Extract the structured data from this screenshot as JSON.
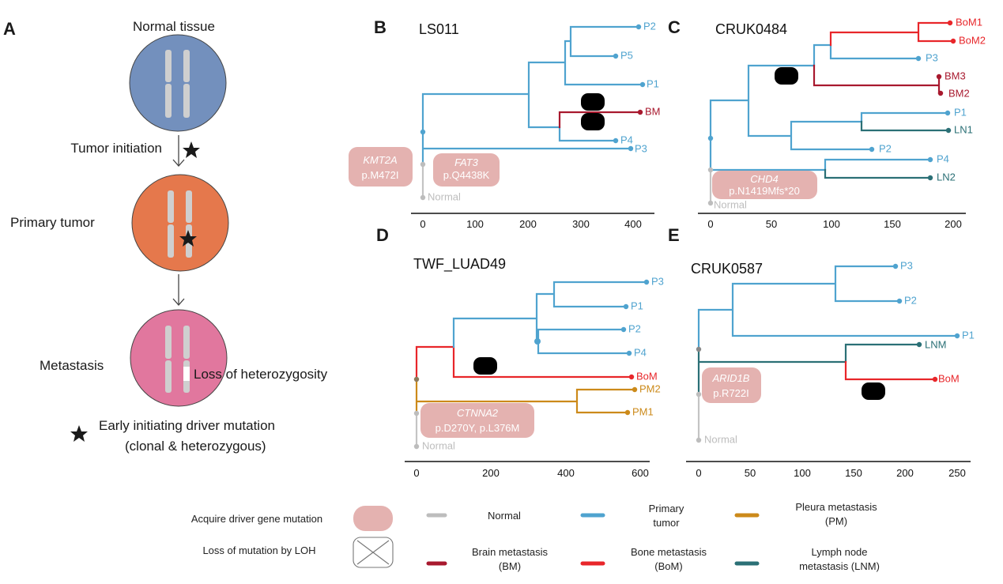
{
  "colors": {
    "primary": "#4FA3CF",
    "brain_metastasis": "#A8192E",
    "bone_metastasis": "#E8262A",
    "pleura_metastasis": "#CC8A1A",
    "lymph_node_metastasis": "#2B7076",
    "normal": "#BDBDBD",
    "driver_mutation_box": "#E4B2B0",
    "normal_tissue_cell": "#7390BD",
    "primary_tumor_cell": "#E5784C",
    "metastasis_cell": "#E1779E"
  },
  "panel_a": {
    "label": "A",
    "normal_tissue": "Normal tissue",
    "tumor_initiation": "Tumor initiation",
    "primary_tumor": "Primary tumor",
    "metastasis": "Metastasis",
    "loh": "Loss of heterozygosity",
    "star_line1": "Early initiating driver mutation",
    "star_line2": "(clonal & heterozygous)"
  },
  "panel_b": {
    "label": "B",
    "title": "LS011",
    "leaves": [
      "P2",
      "P5",
      "P1",
      "BM",
      "P4",
      "P3",
      "Normal"
    ],
    "mutations": [
      {
        "gene": "KMT2A",
        "change": "p.M472I"
      },
      {
        "gene": "FAT3",
        "change": "p.Q4438K"
      }
    ],
    "ticks": [
      "0",
      "100",
      "200",
      "300",
      "400"
    ]
  },
  "panel_c": {
    "label": "C",
    "title": "CRUK0484",
    "leaves": [
      "BoM1",
      "BoM2",
      "P3",
      "BM3",
      "BM2",
      "P1",
      "LN1",
      "P2",
      "P4",
      "LN2",
      "Normal"
    ],
    "mutations": [
      {
        "gene": "CHD4",
        "change": "p.N1419Mfs*20"
      }
    ],
    "ticks": [
      "0",
      "50",
      "100",
      "150",
      "200"
    ]
  },
  "panel_d": {
    "label": "D",
    "title": "TWF_LUAD49",
    "leaves": [
      "P3",
      "P1",
      "P2",
      "P4",
      "BoM",
      "PM2",
      "PM1",
      "Normal"
    ],
    "mutations": [
      {
        "gene": "CTNNA2",
        "change": "p.D270Y, p.L376M"
      }
    ],
    "ticks": [
      "0",
      "200",
      "400",
      "600"
    ]
  },
  "panel_e": {
    "label": "E",
    "title": "CRUK0587",
    "leaves": [
      "P3",
      "P2",
      "P1",
      "LNM",
      "BoM",
      "Normal"
    ],
    "mutations": [
      {
        "gene": "ARID1B",
        "change": "p.R722I"
      }
    ],
    "ticks": [
      "0",
      "50",
      "100",
      "150",
      "200",
      "250"
    ]
  },
  "legend": {
    "acquire": "Acquire driver gene mutation",
    "loh": "Loss of mutation by LOH",
    "normal": "Normal",
    "primary_1": "Primary",
    "primary_2": "tumor",
    "pleura_1": "Pleura metastasis",
    "pleura_2": "(PM)",
    "brain_1": "Brain metastasis",
    "brain_2": "(BM)",
    "bone_1": "Bone metastasis",
    "bone_2": "(BoM)",
    "lymph_1": "Lymph node",
    "lymph_2": "metastasis (LNM)"
  }
}
